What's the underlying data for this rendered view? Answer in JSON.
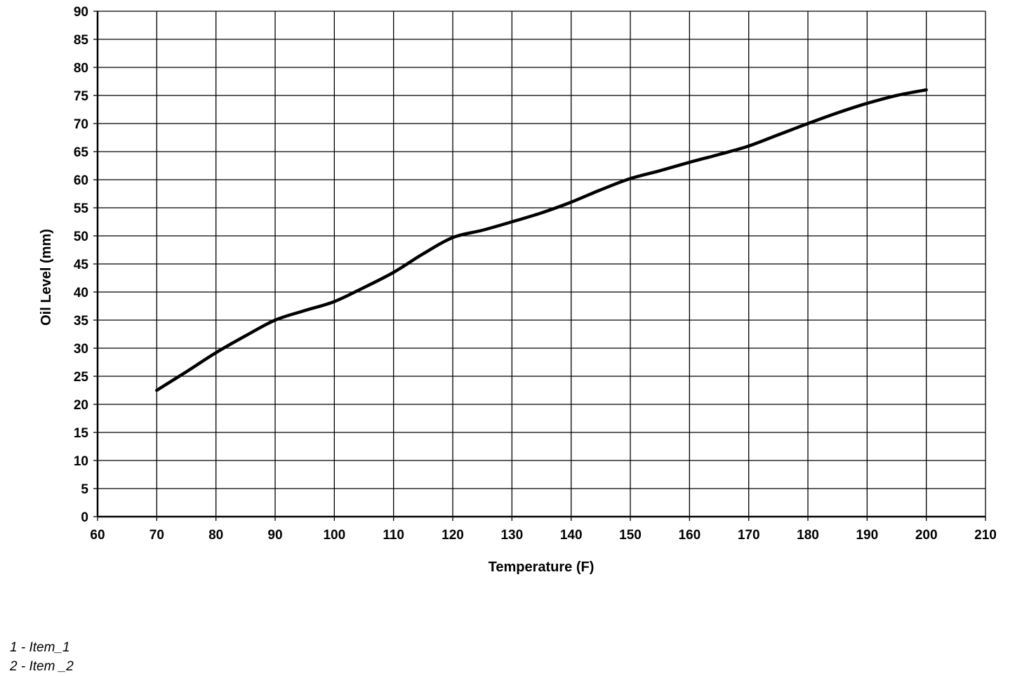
{
  "chart_data": {
    "type": "line",
    "title": "",
    "xlabel": "Temperature (F)",
    "ylabel": "Oil Level (mm)",
    "xlim": [
      60,
      210
    ],
    "ylim": [
      0,
      90
    ],
    "x_ticks": [
      60,
      70,
      80,
      90,
      100,
      110,
      120,
      130,
      140,
      150,
      160,
      170,
      180,
      190,
      200,
      210
    ],
    "x_tick_labels": [
      "60",
      "70",
      "80",
      "90",
      "100",
      "110",
      "120",
      "130",
      "140",
      "150",
      "160",
      "170",
      "180",
      "190",
      "200",
      "210"
    ],
    "y_ticks": [
      0,
      5,
      10,
      15,
      20,
      25,
      30,
      35,
      40,
      45,
      50,
      55,
      60,
      65,
      70,
      75,
      80,
      85,
      90
    ],
    "y_tick_labels": [
      "0",
      "5",
      "10",
      "15",
      "20",
      "25",
      "30",
      "35",
      "40",
      "45",
      "50",
      "55",
      "60",
      "65",
      "70",
      "75",
      "80",
      "85",
      "90"
    ],
    "grid": true,
    "legend": "none",
    "line_color": "#000000",
    "series": [
      {
        "x": [
          70,
          75,
          80,
          85,
          90,
          95,
          100,
          105,
          110,
          115,
          120,
          125,
          130,
          135,
          140,
          145,
          150,
          155,
          160,
          165,
          170,
          175,
          180,
          185,
          190,
          195,
          200
        ],
        "values": [
          22.5,
          25.8,
          29.2,
          32.2,
          35.0,
          36.7,
          38.3,
          40.8,
          43.5,
          46.8,
          49.7,
          51.0,
          52.5,
          54.1,
          56.0,
          58.2,
          60.2,
          61.6,
          63.1,
          64.5,
          66.0,
          68.0,
          70.0,
          71.9,
          73.6,
          75.0,
          76.0
        ]
      }
    ]
  },
  "footnotes": [
    "1 - Item_1",
    "2 - Item _2"
  ]
}
